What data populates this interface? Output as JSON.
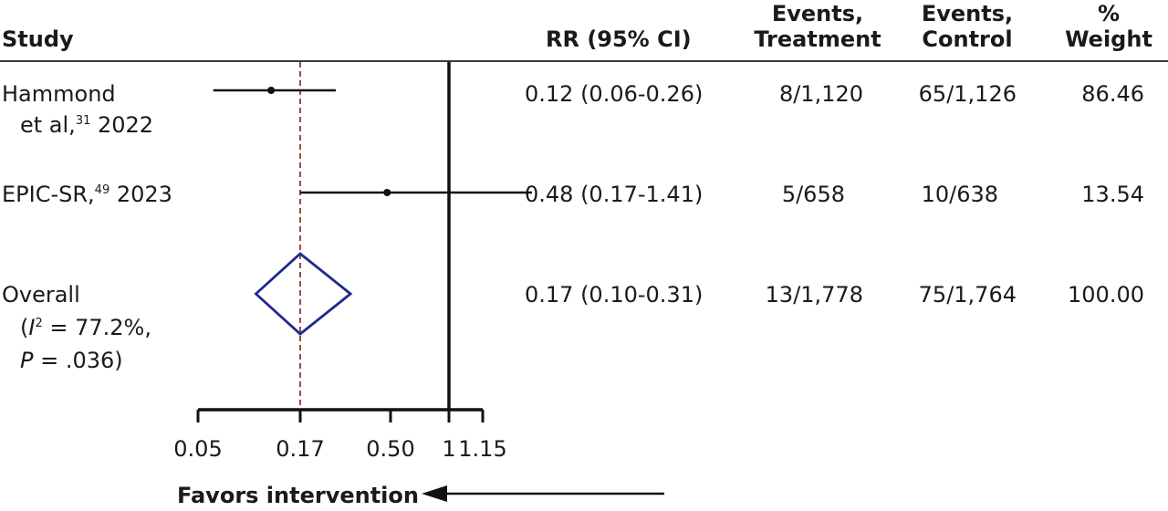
{
  "header": {
    "study": "Study",
    "rr": "RR (95%  CI)",
    "events_treatment_1": "Events,",
    "events_treatment_2": "Treatment",
    "events_control_1": "Events,",
    "events_control_2": "Control",
    "weight_1": "%",
    "weight_2": "Weight"
  },
  "rows": [
    {
      "study_line1": "Hammond",
      "study_line2_pre": "et al,",
      "study_ref": "31",
      "study_line2_post": " 2022",
      "rr_ci": "0.12 (0.06-0.26)",
      "events_treatment": "8/1,120",
      "events_control": "65/1,126",
      "weight": "86.46"
    },
    {
      "study_line1_pre": "EPIC-SR,",
      "study_ref": "49",
      "study_line1_post": " 2023",
      "rr_ci": "0.48 (0.17-1.41)",
      "events_treatment": "5/658",
      "events_control": "10/638",
      "weight": "13.54"
    }
  ],
  "overall": {
    "label": "Overall",
    "het_open": "(",
    "het_i": "I",
    "het_sup": "2",
    "het_rest": " = 77.2%,",
    "p_label": "P",
    "p_rest": " = .036)",
    "rr_ci": "0.17 (0.10-0.31)",
    "events_treatment": "13/1,778",
    "events_control": "75/1,764",
    "weight": "100.00"
  },
  "favors_label": "Favors intervention",
  "colors": {
    "text": "#1a1a1a",
    "diamond": "#1f2a8c",
    "reference_line": "#8b1a1a"
  },
  "chart_data": {
    "type": "forest",
    "xscale": "log",
    "xticks": [
      0.05,
      0.17,
      0.5,
      1,
      1.15
    ],
    "xtick_labels": [
      "0.05",
      "0.17",
      "0.50",
      "1",
      "1.15"
    ],
    "xlim": [
      0.05,
      1.15
    ],
    "null_line": 1,
    "pooled_reference_line": 0.17,
    "studies": [
      {
        "estimate": 0.12,
        "lower": 0.06,
        "upper": 0.26
      },
      {
        "estimate": 0.48,
        "lower": 0.17,
        "upper": 1.41
      }
    ],
    "overall": {
      "estimate": 0.17,
      "lower": 0.1,
      "upper": 0.31
    }
  }
}
